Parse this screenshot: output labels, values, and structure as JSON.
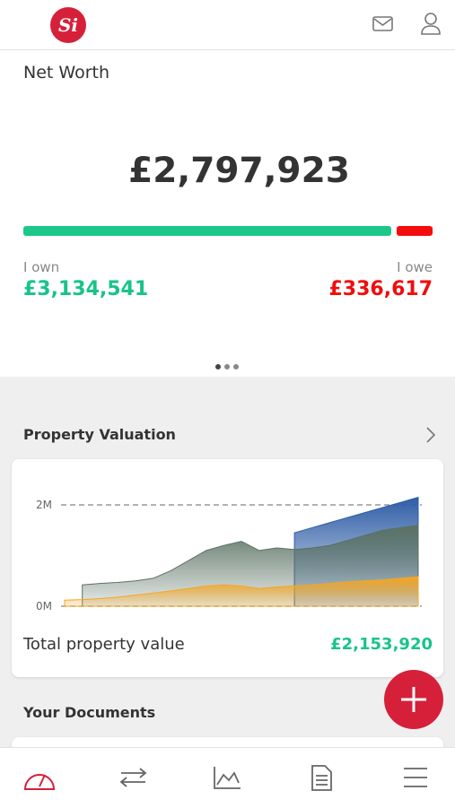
{
  "header": {
    "logo": "Si"
  },
  "net_worth": {
    "title": "Net Worth",
    "total": "£2,797,923",
    "own_label": "I own",
    "own_value": "£3,134,541",
    "owe_label": "I owe",
    "owe_value": "£336,617"
  },
  "property": {
    "title": "Property Valuation",
    "total_label": "Total property value",
    "total_value": "£2,153,920"
  },
  "documents": {
    "title": "Your Documents"
  },
  "chart_data": {
    "type": "area",
    "categories": [
      null,
      null,
      null,
      null,
      null,
      null,
      null,
      null,
      null,
      null,
      null,
      null,
      null,
      null,
      null,
      null,
      null,
      null,
      null,
      null,
      null
    ],
    "series": [
      {
        "color": "#2f5da6",
        "values": [
          null,
          null,
          null,
          null,
          null,
          null,
          null,
          null,
          null,
          null,
          null,
          null,
          null,
          1.45,
          1.55,
          1.65,
          1.75,
          1.85,
          1.95,
          2.05,
          2.15
        ]
      },
      {
        "color": "#5b7263",
        "values": [
          null,
          0.42,
          0.45,
          0.47,
          0.5,
          0.55,
          0.7,
          0.9,
          1.1,
          1.2,
          1.28,
          1.1,
          1.15,
          1.12,
          1.15,
          1.2,
          1.3,
          1.4,
          1.5,
          1.55,
          1.6
        ]
      },
      {
        "color": "#f5a623",
        "values": [
          0.12,
          0.13,
          0.15,
          0.18,
          0.22,
          0.26,
          0.3,
          0.35,
          0.4,
          0.42,
          0.4,
          0.35,
          0.38,
          0.4,
          0.42,
          0.45,
          0.48,
          0.5,
          0.52,
          0.55,
          0.58
        ]
      }
    ],
    "ylim": [
      0,
      2.2
    ],
    "yticks": [
      {
        "value": 0,
        "label": "0M"
      },
      {
        "value": 2,
        "label": "2M"
      }
    ],
    "grid": true
  }
}
